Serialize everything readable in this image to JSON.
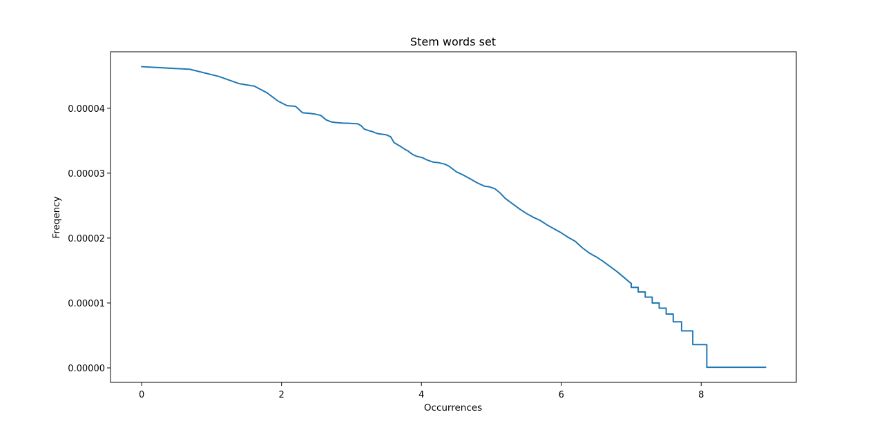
{
  "chart_data": {
    "type": "line",
    "title": "Stem words set",
    "xlabel": "Occurrences",
    "ylabel": "Freqency",
    "xlim": [
      -0.446,
      9.36
    ],
    "ylim": [
      -2.23e-06,
      4.87e-05
    ],
    "x_ticks": [
      0,
      2,
      4,
      6,
      8
    ],
    "x_tick_labels": [
      "0",
      "2",
      "4",
      "6",
      "8"
    ],
    "y_ticks": [
      0,
      1e-05,
      2e-05,
      3e-05,
      4e-05
    ],
    "y_tick_labels": [
      "0.00000",
      "0.00001",
      "0.00002",
      "0.00003",
      "0.00004"
    ],
    "grid": false,
    "series": [
      {
        "color": "#1f77b4",
        "step": false,
        "points": [
          [
            0.0,
            4.64e-05
          ],
          [
            0.69,
            4.6e-05
          ],
          [
            1.1,
            4.49e-05
          ],
          [
            1.39,
            4.38e-05
          ],
          [
            1.61,
            4.34e-05
          ],
          [
            1.79,
            4.24e-05
          ],
          [
            1.95,
            4.11e-05
          ],
          [
            2.08,
            4.04e-05
          ],
          [
            2.2,
            4.03e-05
          ],
          [
            2.3,
            3.93e-05
          ],
          [
            2.4,
            3.92e-05
          ],
          [
            2.48,
            3.91e-05
          ],
          [
            2.56,
            3.89e-05
          ],
          [
            2.64,
            3.82e-05
          ],
          [
            2.71,
            3.79e-05
          ],
          [
            2.77,
            3.78e-05
          ],
          [
            2.83,
            3.775e-05
          ],
          [
            2.89,
            3.77e-05
          ],
          [
            2.94,
            3.77e-05
          ],
          [
            3.0,
            3.765e-05
          ],
          [
            3.09,
            3.76e-05
          ],
          [
            3.14,
            3.73e-05
          ],
          [
            3.18,
            3.68e-05
          ],
          [
            3.26,
            3.65e-05
          ],
          [
            3.3,
            3.64e-05
          ],
          [
            3.37,
            3.61e-05
          ],
          [
            3.43,
            3.6e-05
          ],
          [
            3.5,
            3.59e-05
          ],
          [
            3.56,
            3.56e-05
          ],
          [
            3.61,
            3.47e-05
          ],
          [
            3.69,
            3.42e-05
          ],
          [
            3.76,
            3.37e-05
          ],
          [
            3.81,
            3.34e-05
          ],
          [
            3.87,
            3.29e-05
          ],
          [
            3.93,
            3.26e-05
          ],
          [
            4.01,
            3.24e-05
          ],
          [
            4.09,
            3.2e-05
          ],
          [
            4.17,
            3.17e-05
          ],
          [
            4.25,
            3.16e-05
          ],
          [
            4.33,
            3.14e-05
          ],
          [
            4.39,
            3.11e-05
          ],
          [
            4.44,
            3.07e-05
          ],
          [
            4.5,
            3.02e-05
          ],
          [
            4.6,
            2.97e-05
          ],
          [
            4.7,
            2.91e-05
          ],
          [
            4.8,
            2.85e-05
          ],
          [
            4.9,
            2.8e-05
          ],
          [
            4.97,
            2.79e-05
          ],
          [
            5.05,
            2.76e-05
          ],
          [
            5.12,
            2.7e-05
          ],
          [
            5.2,
            2.61e-05
          ],
          [
            5.3,
            2.53e-05
          ],
          [
            5.4,
            2.45e-05
          ],
          [
            5.5,
            2.38e-05
          ],
          [
            5.6,
            2.32e-05
          ],
          [
            5.7,
            2.27e-05
          ],
          [
            5.8,
            2.2e-05
          ],
          [
            5.9,
            2.14e-05
          ],
          [
            6.0,
            2.08e-05
          ],
          [
            6.1,
            2.01e-05
          ],
          [
            6.2,
            1.95e-05
          ],
          [
            6.3,
            1.85e-05
          ],
          [
            6.4,
            1.77e-05
          ],
          [
            6.5,
            1.71e-05
          ],
          [
            6.6,
            1.64e-05
          ],
          [
            6.7,
            1.56e-05
          ],
          [
            6.8,
            1.48e-05
          ],
          [
            6.9,
            1.39e-05
          ],
          [
            7.0,
            1.3e-05
          ]
        ]
      },
      {
        "color": "#1f77b4",
        "step": true,
        "points": [
          [
            7.0,
            1.3e-05
          ],
          [
            7.1,
            1.24e-05
          ],
          [
            7.2,
            1.17e-05
          ],
          [
            7.3,
            1.09e-05
          ],
          [
            7.4,
            1e-05
          ],
          [
            7.5,
            9.2e-06
          ],
          [
            7.6,
            8.3e-06
          ],
          [
            7.72,
            7.1e-06
          ],
          [
            7.88,
            5.7e-06
          ],
          [
            8.08,
            3.6e-06
          ],
          [
            8.36,
            1e-07
          ],
          [
            8.92,
            1e-07
          ]
        ]
      }
    ]
  }
}
